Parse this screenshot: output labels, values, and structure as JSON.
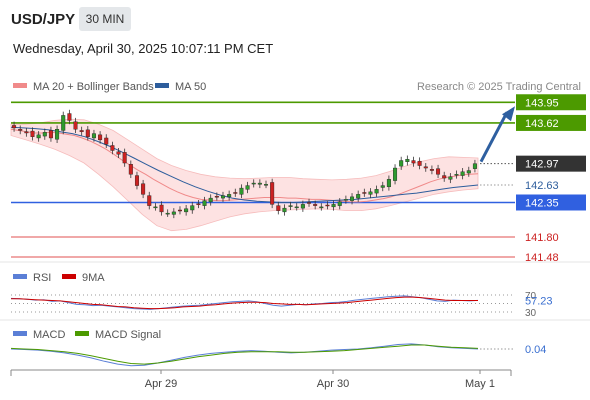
{
  "header": {
    "pair": "USD/JPY",
    "timeframe": "30 MIN",
    "datetime": "Wednesday, April 30, 2025 10:07:11 PM CET"
  },
  "credit": "Research © 2025 Trading Central",
  "legend": {
    "ma20_label": "MA 20 + Bollinger Bands",
    "ma50_label": "MA 50",
    "rsi_label": "RSI",
    "rsi_ma_label": "9MA",
    "macd_label": "MACD",
    "macd_signal_label": "MACD Signal"
  },
  "colors": {
    "candle_up": "#2e9a2e",
    "candle_down": "#cc2222",
    "ma20": "#f08a8a",
    "ma50": "#2d5d9c",
    "bollinger_fill": "#fde2e2",
    "resistance": "#4c9a00",
    "support": "#3060e0",
    "minor_support": "#e05050",
    "current_price_box": "#333333",
    "arrow": "#2e5fa0",
    "rsi_line": "#5b7fd6",
    "rsi_ma": "#cc0000",
    "macd_line": "#5b7fd6",
    "macd_signal": "#4c9a00"
  },
  "chart_data": [
    {
      "type": "line",
      "title": "USD/JPY 30 MIN",
      "panel": "price",
      "ylim": [
        141.4,
        144.05
      ],
      "x_ticks": [
        "Apr 29",
        "Apr 30",
        "May 1"
      ],
      "current_price": 142.97,
      "levels": [
        {
          "value": 143.95,
          "kind": "resistance"
        },
        {
          "value": 143.62,
          "kind": "resistance"
        },
        {
          "value": 142.35,
          "kind": "support"
        },
        {
          "value": 141.8,
          "kind": "minor_support"
        },
        {
          "value": 141.48,
          "kind": "minor_support"
        }
      ],
      "ma_label_value": 142.63,
      "forecast_arrow": {
        "from": 142.97,
        "to": 143.95
      },
      "candles_close": [
        143.54,
        143.5,
        143.46,
        143.4,
        143.43,
        143.47,
        143.38,
        143.52,
        143.74,
        143.66,
        143.52,
        143.48,
        143.4,
        143.45,
        143.35,
        143.28,
        143.18,
        143.12,
        142.98,
        142.8,
        142.62,
        142.48,
        142.3,
        142.28,
        142.2,
        142.18,
        142.2,
        142.22,
        142.25,
        142.3,
        142.32,
        142.38,
        142.42,
        142.44,
        142.46,
        142.48,
        142.5,
        142.58,
        142.62,
        142.66,
        142.66,
        142.64,
        142.32,
        142.22,
        142.26,
        142.3,
        142.28,
        142.32,
        142.34,
        142.3,
        142.28,
        142.3,
        142.32,
        142.36,
        142.4,
        142.44,
        142.48,
        142.5,
        142.52,
        142.56,
        142.62,
        142.72,
        142.9,
        143.02,
        143.04,
        142.98,
        142.94,
        142.9,
        142.86,
        142.8,
        142.74,
        142.76,
        142.8,
        142.84,
        142.86,
        142.97
      ],
      "ma20": [
        143.52,
        143.5,
        143.48,
        143.46,
        143.46,
        143.47,
        143.46,
        143.44,
        143.42,
        143.38,
        143.33,
        143.27,
        143.2,
        143.12,
        143.03,
        142.95,
        142.87,
        142.8,
        142.72,
        142.65,
        142.58,
        142.52,
        142.47,
        142.43,
        142.4,
        142.39,
        142.38,
        142.38,
        142.39,
        142.4,
        142.41,
        142.42,
        142.43,
        142.43,
        142.43,
        142.42,
        142.42,
        142.41,
        142.4,
        142.4,
        142.39,
        142.38,
        142.37,
        142.36,
        142.36,
        142.37,
        142.39,
        142.41,
        142.44,
        142.48,
        142.53,
        142.58,
        142.63,
        142.68,
        142.72,
        142.75,
        142.77,
        142.79,
        142.8,
        142.81
      ],
      "bb_upper": [
        143.6,
        143.6,
        143.62,
        143.66,
        143.68,
        143.67,
        143.6,
        143.5,
        143.35,
        143.2,
        143.05,
        142.94,
        142.86,
        142.8,
        142.76,
        142.74,
        142.73,
        142.74,
        142.75,
        142.75,
        142.73,
        142.72,
        142.71,
        142.72,
        142.74,
        142.78,
        142.85,
        142.93,
        143.0,
        143.05,
        143.08,
        143.07,
        143.06
      ],
      "bb_lower": [
        143.42,
        143.35,
        143.28,
        143.2,
        143.1,
        142.98,
        142.8,
        142.6,
        142.38,
        142.16,
        141.98,
        141.9,
        141.92,
        141.98,
        142.05,
        142.12,
        142.17,
        142.2,
        142.22,
        142.23,
        142.24,
        142.25,
        142.24,
        142.22,
        142.22,
        142.25,
        142.3,
        142.36,
        142.42,
        142.48,
        142.52,
        142.55,
        142.57
      ],
      "ma50": [
        143.55,
        143.54,
        143.53,
        143.51,
        143.48,
        143.45,
        143.4,
        143.33,
        143.25,
        143.16,
        143.06,
        142.96,
        142.86,
        142.77,
        142.68,
        142.6,
        142.53,
        142.47,
        142.42,
        142.39,
        142.37,
        142.36,
        142.35,
        142.35,
        142.36,
        142.37,
        142.38,
        142.39,
        142.4,
        142.42,
        142.44,
        142.46,
        142.48,
        142.5,
        142.53,
        142.56,
        142.59,
        142.61,
        142.63
      ]
    },
    {
      "type": "line",
      "title": "RSI",
      "panel": "rsi",
      "ylim": [
        30,
        70
      ],
      "y_ticks": [
        30,
        50,
        70
      ],
      "current_value": 57.23,
      "series": [
        {
          "name": "RSI",
          "values": [
            62,
            61,
            60,
            58,
            59,
            55,
            56,
            52,
            48,
            47,
            45,
            46,
            44,
            42,
            40,
            38,
            37,
            36,
            38,
            40,
            42,
            44,
            45,
            46,
            48,
            50,
            52,
            54,
            55,
            56,
            54,
            50,
            46,
            44,
            46,
            48,
            47,
            49,
            50,
            52,
            53,
            55,
            58,
            60,
            62,
            64,
            66,
            67,
            68,
            66,
            64,
            60,
            56,
            55,
            58,
            57,
            56,
            57.23
          ]
        },
        {
          "name": "9MA",
          "values": [
            61,
            61,
            60,
            59,
            58,
            57,
            56,
            54,
            52,
            50,
            48,
            47,
            45,
            43,
            42,
            40,
            39,
            38,
            38,
            39,
            40,
            42,
            43,
            44,
            46,
            47,
            49,
            51,
            52,
            53,
            53,
            52,
            50,
            49,
            48,
            48,
            47,
            48,
            49,
            50,
            51,
            52,
            54,
            56,
            58,
            60,
            62,
            64,
            65,
            65,
            64,
            62,
            60,
            58,
            57,
            57,
            57,
            57
          ]
        }
      ]
    },
    {
      "type": "line",
      "title": "MACD",
      "panel": "macd",
      "ylim": [
        -0.3,
        0.2
      ],
      "current_value": 0.04,
      "series": [
        {
          "name": "MACD",
          "values": [
            0.04,
            0.03,
            0.02,
            0.0,
            -0.03,
            -0.07,
            -0.12,
            -0.18,
            -0.23,
            -0.26,
            -0.25,
            -0.21,
            -0.16,
            -0.11,
            -0.07,
            -0.04,
            -0.02,
            0.0,
            0.01,
            0.0,
            -0.02,
            -0.03,
            -0.02,
            0.0,
            0.02,
            0.03,
            0.04,
            0.06,
            0.09,
            0.12,
            0.13,
            0.11,
            0.08,
            0.06,
            0.05,
            0.04
          ]
        },
        {
          "name": "MACD Signal",
          "values": [
            0.05,
            0.04,
            0.03,
            0.01,
            -0.01,
            -0.04,
            -0.08,
            -0.13,
            -0.18,
            -0.22,
            -0.23,
            -0.21,
            -0.18,
            -0.14,
            -0.1,
            -0.07,
            -0.04,
            -0.02,
            -0.01,
            -0.01,
            -0.01,
            -0.02,
            -0.02,
            -0.01,
            0.0,
            0.01,
            0.03,
            0.05,
            0.07,
            0.09,
            0.11,
            0.11,
            0.09,
            0.07,
            0.06,
            0.05
          ]
        }
      ]
    }
  ]
}
